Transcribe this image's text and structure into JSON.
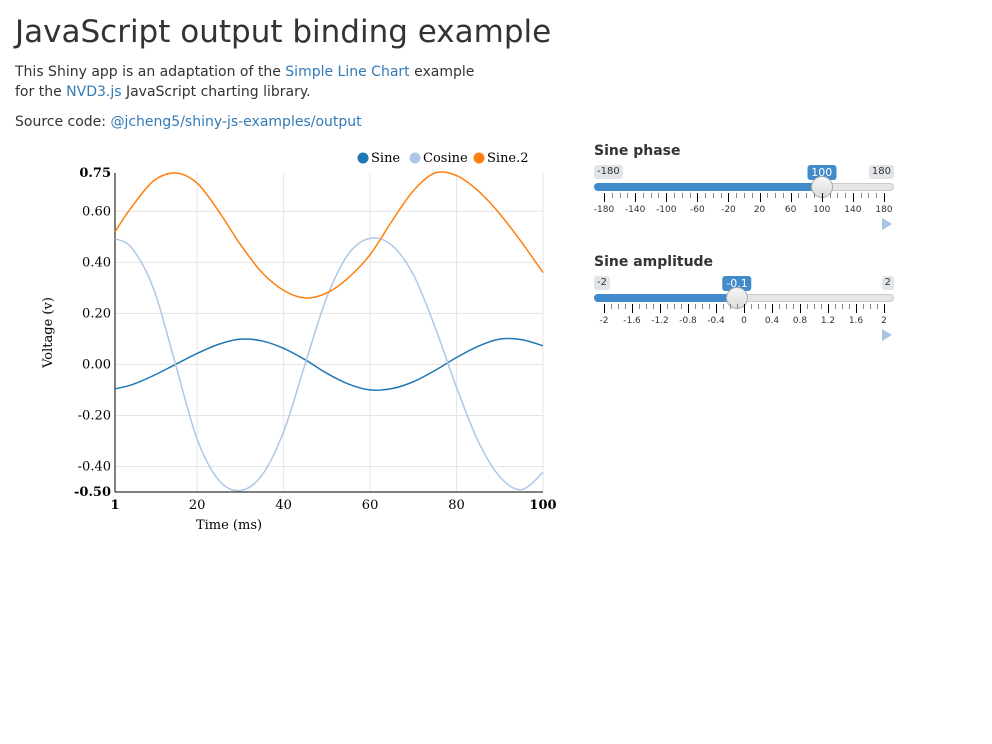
{
  "header": {
    "title": "JavaScript output binding example"
  },
  "intro": {
    "text1": "This Shiny app is an adaptation of the ",
    "link1": "Simple Line Chart",
    "text2": " example for the ",
    "link2": "NVD3.js",
    "text3": " JavaScript charting library."
  },
  "source": {
    "label": "Source code: ",
    "link": "@jcheng5/shiny-js-examples/output"
  },
  "chart_data": {
    "type": "line",
    "xlabel": "Time (ms)",
    "ylabel": "Voltage (v)",
    "xlim": [
      1,
      100
    ],
    "ylim": [
      -0.5,
      0.75
    ],
    "x_ticks": [
      1,
      20,
      40,
      60,
      80,
      100
    ],
    "x_tick_labels": [
      "1",
      "20",
      "40",
      "60",
      "80",
      "100"
    ],
    "y_ticks": [
      -0.5,
      -0.4,
      -0.2,
      0,
      0.2,
      0.4,
      0.6,
      0.75
    ],
    "y_tick_labels": [
      "-0.50",
      "-0.40",
      "-0.20",
      "0.00",
      "0.20",
      "0.40",
      "0.60",
      "0.75"
    ],
    "legend_position": "top-right",
    "grid": true,
    "series": [
      {
        "name": "Sine",
        "color": "#1f77b4",
        "x": [
          1,
          5,
          10,
          15,
          20,
          25,
          30,
          35,
          40,
          45,
          50,
          55,
          60,
          65,
          70,
          75,
          80,
          85,
          90,
          95,
          100
        ],
        "values": [
          -0.096,
          -0.079,
          -0.043,
          0.0,
          0.043,
          0.079,
          0.099,
          0.092,
          0.063,
          0.018,
          -0.035,
          -0.077,
          -0.1,
          -0.095,
          -0.068,
          -0.024,
          0.027,
          0.071,
          0.099,
          0.097,
          0.073
        ]
      },
      {
        "name": "Cosine",
        "color": "#aec7e8",
        "x": [
          1,
          5,
          10,
          15,
          20,
          25,
          30,
          35,
          40,
          45,
          50,
          55,
          60,
          65,
          70,
          75,
          80,
          85,
          90,
          95,
          100
        ],
        "values": [
          0.493,
          0.454,
          0.293,
          0.0,
          -0.293,
          -0.454,
          -0.494,
          -0.434,
          -0.264,
          0.003,
          0.263,
          0.433,
          0.494,
          0.467,
          0.352,
          0.147,
          -0.09,
          -0.301,
          -0.44,
          -0.491,
          -0.423
        ]
      },
      {
        "name": "Sine.2",
        "color": "#ff7f0e",
        "x": [
          1,
          5,
          10,
          15,
          20,
          25,
          30,
          35,
          40,
          45,
          50,
          55,
          60,
          65,
          70,
          75,
          80,
          85,
          90,
          95,
          100
        ],
        "values": [
          0.52,
          0.62,
          0.72,
          0.75,
          0.71,
          0.6,
          0.47,
          0.36,
          0.29,
          0.26,
          0.28,
          0.34,
          0.43,
          0.56,
          0.68,
          0.75,
          0.74,
          0.68,
          0.59,
          0.48,
          0.36
        ]
      }
    ]
  },
  "sliders": [
    {
      "label": "Sine phase",
      "min_label": "-180",
      "max_label": "180",
      "value_label": "100",
      "min": -180,
      "max": 180,
      "value": 100,
      "tick_labels": [
        "-180",
        "-140",
        "-100",
        "-60",
        "-20",
        "20",
        "60",
        "100",
        "140",
        "180"
      ],
      "tick_values": [
        -180,
        -140,
        -100,
        -60,
        -20,
        20,
        60,
        100,
        140,
        180
      ]
    },
    {
      "label": "Sine amplitude",
      "min_label": "-2",
      "max_label": "2",
      "value_label": "-0.1",
      "min": -2,
      "max": 2,
      "value": -0.1,
      "tick_labels": [
        "-2",
        "-1.6",
        "-1.2",
        "-0.8",
        "-0.4",
        "0",
        "0.4",
        "0.8",
        "1.2",
        "1.6",
        "2"
      ],
      "tick_values": [
        -2,
        -1.6,
        -1.2,
        -0.8,
        -0.4,
        0,
        0.4,
        0.8,
        1.2,
        1.6,
        2
      ]
    }
  ]
}
